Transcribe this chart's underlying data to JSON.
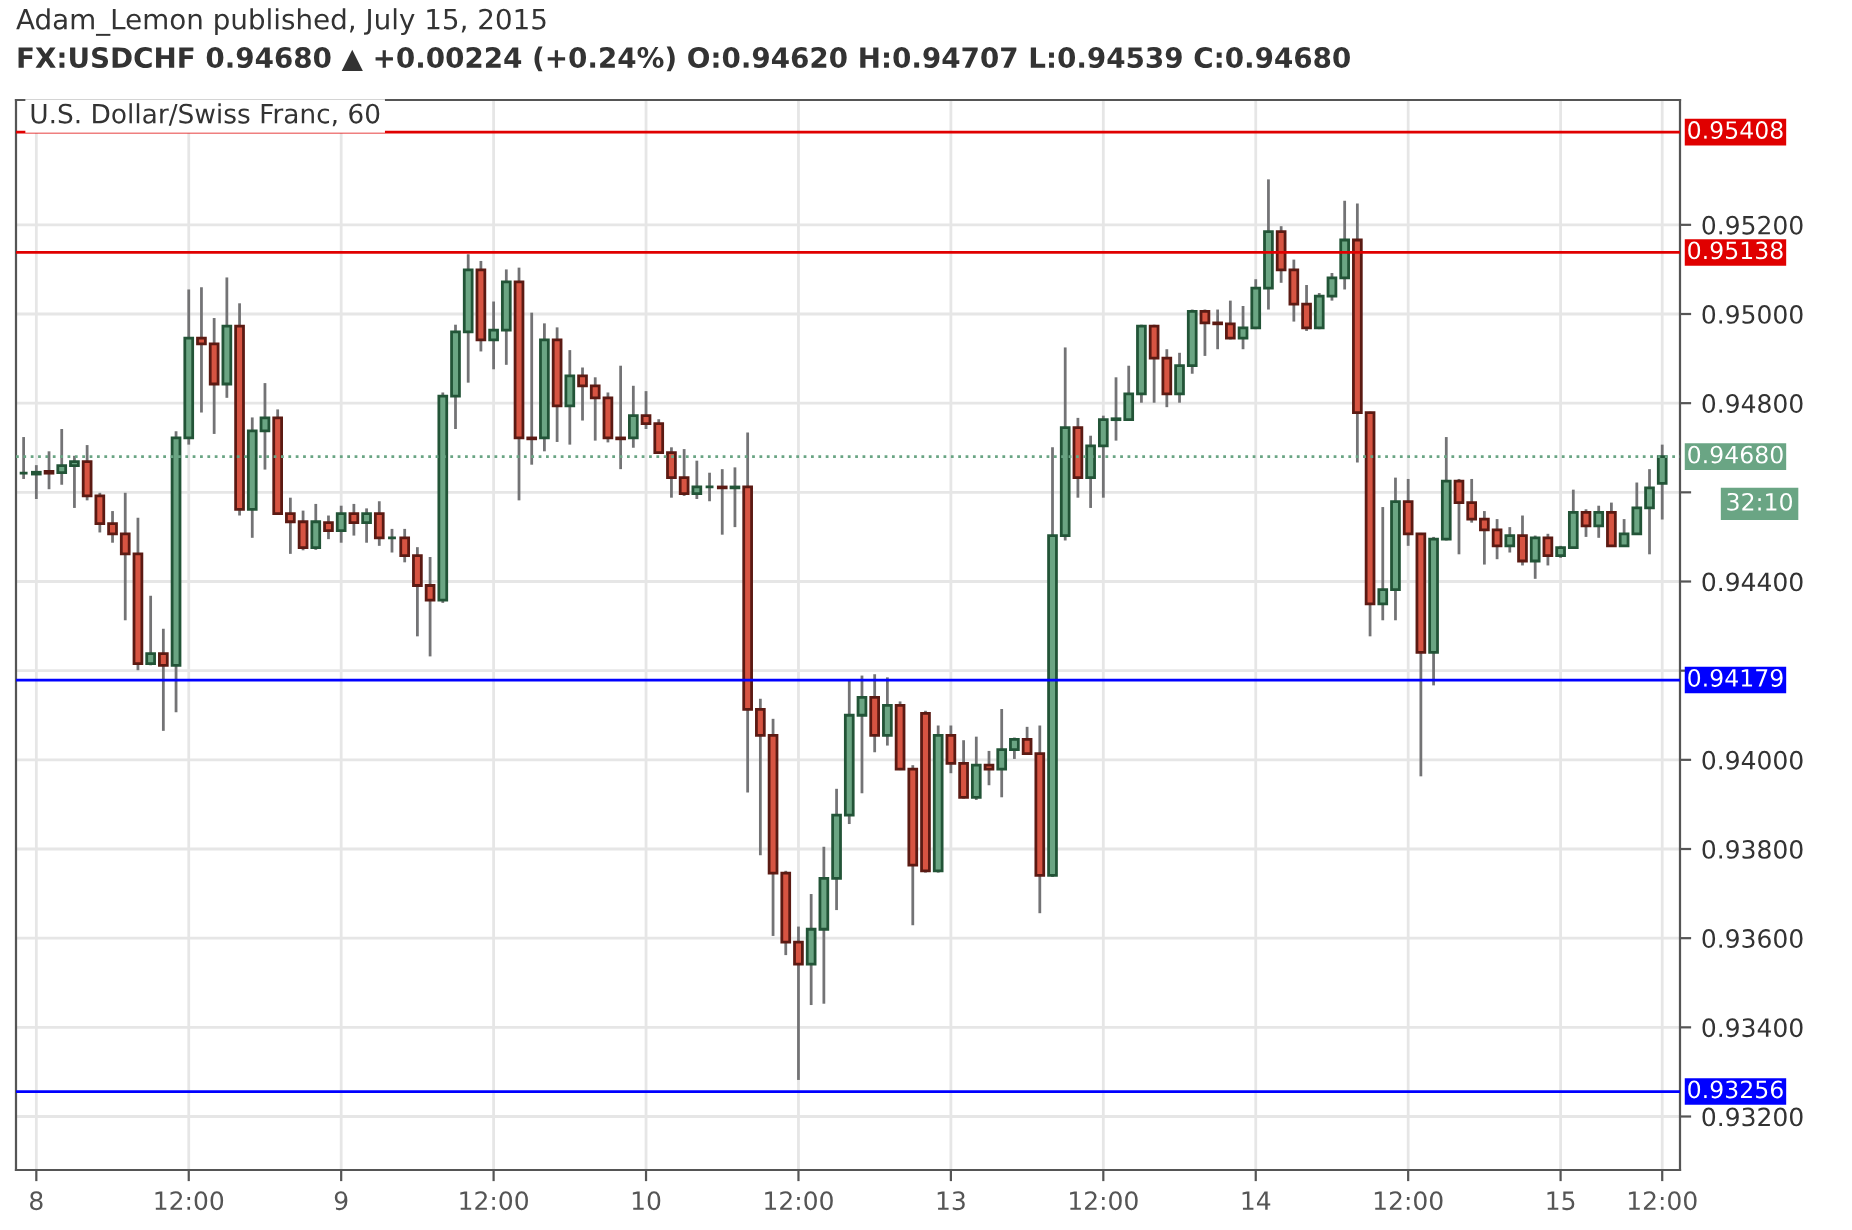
{
  "chart_data": {
    "type": "candlestick",
    "title": "U.S. Dollar/Swiss Franc, 60",
    "subtitle": "FX:USDCHF 0.94680 ▲ +0.00224 (+0.24%) O:0.94620 H:0.94707 L:0.94539 C:0.94680",
    "annotations": [
      "Adam_Lemon published, July 15, 2015",
      "32:10"
    ],
    "categories": [
      null,
      "8",
      null,
      null,
      null,
      null,
      null,
      null,
      null,
      null,
      null,
      null,
      null,
      "12:00",
      null,
      null,
      null,
      null,
      null,
      null,
      null,
      null,
      null,
      null,
      null,
      "9",
      null,
      null,
      null,
      null,
      null,
      null,
      null,
      null,
      null,
      null,
      null,
      "12:00",
      null,
      null,
      null,
      null,
      null,
      null,
      null,
      null,
      null,
      null,
      null,
      "10",
      null,
      null,
      null,
      null,
      null,
      null,
      null,
      null,
      null,
      null,
      null,
      "12:00",
      null,
      null,
      null,
      null,
      null,
      null,
      null,
      null,
      null,
      null,
      null,
      "13",
      null,
      null,
      null,
      null,
      null,
      null,
      null,
      null,
      null,
      null,
      null,
      "12:00",
      null,
      null,
      null,
      null,
      null,
      null,
      null,
      null,
      null,
      null,
      null,
      "14",
      null,
      null,
      null,
      null,
      null,
      null,
      null,
      null,
      null,
      null,
      null,
      "12:00",
      null,
      null,
      null,
      null,
      null,
      null,
      null,
      null,
      null,
      null,
      null,
      "15",
      null,
      null,
      null,
      null,
      null,
      null,
      null,
      "12:00"
    ],
    "ohlc": [
      [
        0.94643,
        0.94724,
        0.9463,
        0.94643
      ],
      [
        0.94641,
        0.94661,
        0.94585,
        0.94645
      ],
      [
        0.94647,
        0.94692,
        0.94607,
        0.94643
      ],
      [
        0.94644,
        0.94742,
        0.94617,
        0.9466
      ],
      [
        0.9466,
        0.94682,
        0.94565,
        0.94669
      ],
      [
        0.94669,
        0.94706,
        0.94582,
        0.94592
      ],
      [
        0.94592,
        0.94599,
        0.9451,
        0.9453
      ],
      [
        0.9453,
        0.94558,
        0.94487,
        0.94507
      ],
      [
        0.94507,
        0.94599,
        0.94313,
        0.94462
      ],
      [
        0.94462,
        0.94543,
        0.94201,
        0.94216
      ],
      [
        0.94216,
        0.94368,
        0.94212,
        0.94238
      ],
      [
        0.94238,
        0.94294,
        0.94065,
        0.94212
      ],
      [
        0.94212,
        0.94737,
        0.94107,
        0.94722
      ],
      [
        0.94722,
        0.95055,
        0.94707,
        0.94946
      ],
      [
        0.94946,
        0.9506,
        0.94779,
        0.94933
      ],
      [
        0.94933,
        0.94991,
        0.94731,
        0.94843
      ],
      [
        0.94843,
        0.95082,
        0.94812,
        0.94973
      ],
      [
        0.94973,
        0.95024,
        0.94548,
        0.94562
      ],
      [
        0.94562,
        0.94768,
        0.94498,
        0.94738
      ],
      [
        0.94738,
        0.94845,
        0.94651,
        0.94767
      ],
      [
        0.94767,
        0.94786,
        0.9455,
        0.94552
      ],
      [
        0.94552,
        0.94588,
        0.94462,
        0.94534
      ],
      [
        0.94534,
        0.94559,
        0.9447,
        0.94476
      ],
      [
        0.94476,
        0.94574,
        0.94471,
        0.94534
      ],
      [
        0.94532,
        0.94548,
        0.94495,
        0.94514
      ],
      [
        0.94514,
        0.9457,
        0.94487,
        0.94552
      ],
      [
        0.94552,
        0.94574,
        0.94503,
        0.94532
      ],
      [
        0.94532,
        0.94564,
        0.94487,
        0.94552
      ],
      [
        0.94552,
        0.9458,
        0.9448,
        0.94498
      ],
      [
        0.94498,
        0.94518,
        0.94465,
        0.94498
      ],
      [
        0.94498,
        0.94518,
        0.94443,
        0.94458
      ],
      [
        0.94458,
        0.94477,
        0.94277,
        0.94391
      ],
      [
        0.94391,
        0.94455,
        0.94232,
        0.94358
      ],
      [
        0.94358,
        0.94824,
        0.94352,
        0.94816
      ],
      [
        0.94816,
        0.94976,
        0.94742,
        0.9496
      ],
      [
        0.9496,
        0.95134,
        0.94846,
        0.95099
      ],
      [
        0.95099,
        0.95119,
        0.94916,
        0.94942
      ],
      [
        0.94942,
        0.95028,
        0.94876,
        0.94964
      ],
      [
        0.94964,
        0.951,
        0.94886,
        0.95072
      ],
      [
        0.95072,
        0.95104,
        0.94582,
        0.94722
      ],
      [
        0.94722,
        0.95003,
        0.94662,
        0.9472
      ],
      [
        0.94722,
        0.94979,
        0.94692,
        0.94942
      ],
      [
        0.94942,
        0.9497,
        0.94713,
        0.94794
      ],
      [
        0.94794,
        0.94919,
        0.94707,
        0.94861
      ],
      [
        0.94861,
        0.9488,
        0.94761,
        0.94839
      ],
      [
        0.94839,
        0.94858,
        0.94716,
        0.94812
      ],
      [
        0.94812,
        0.94824,
        0.94712,
        0.94722
      ],
      [
        0.94722,
        0.94884,
        0.94652,
        0.9472
      ],
      [
        0.94722,
        0.94839,
        0.947,
        0.94772
      ],
      [
        0.94772,
        0.94827,
        0.94742,
        0.94754
      ],
      [
        0.94754,
        0.94764,
        0.94689,
        0.94689
      ],
      [
        0.94689,
        0.94701,
        0.94588,
        0.94633
      ],
      [
        0.94633,
        0.94697,
        0.94592,
        0.94597
      ],
      [
        0.94597,
        0.94671,
        0.94585,
        0.94612
      ],
      [
        0.94612,
        0.94644,
        0.9458,
        0.94612
      ],
      [
        0.94612,
        0.94652,
        0.94505,
        0.9461
      ],
      [
        0.9461,
        0.94656,
        0.94522,
        0.94612
      ],
      [
        0.94612,
        0.94734,
        0.93927,
        0.94113
      ],
      [
        0.94113,
        0.94137,
        0.93786,
        0.94055
      ],
      [
        0.94055,
        0.94092,
        0.93605,
        0.93746
      ],
      [
        0.93746,
        0.93751,
        0.93562,
        0.93591
      ],
      [
        0.93591,
        0.93626,
        0.93282,
        0.93542
      ],
      [
        0.93542,
        0.93699,
        0.9345,
        0.9362
      ],
      [
        0.9362,
        0.93805,
        0.93453,
        0.93734
      ],
      [
        0.93734,
        0.93935,
        0.93663,
        0.93876
      ],
      [
        0.93876,
        0.94177,
        0.93856,
        0.941
      ],
      [
        0.941,
        0.94189,
        0.93925,
        0.9414
      ],
      [
        0.9414,
        0.94192,
        0.94017,
        0.94055
      ],
      [
        0.94055,
        0.94185,
        0.94032,
        0.94122
      ],
      [
        0.94122,
        0.94131,
        0.93977,
        0.93979
      ],
      [
        0.93979,
        0.93988,
        0.93629,
        0.93764
      ],
      [
        0.94104,
        0.9411,
        0.93747,
        0.93751
      ],
      [
        0.93751,
        0.94077,
        0.93747,
        0.94055
      ],
      [
        0.94055,
        0.94077,
        0.9397,
        0.93992
      ],
      [
        0.93992,
        0.94044,
        0.93913,
        0.93916
      ],
      [
        0.93916,
        0.94052,
        0.9391,
        0.93988
      ],
      [
        0.93988,
        0.9402,
        0.93943,
        0.93979
      ],
      [
        0.93979,
        0.94114,
        0.93916,
        0.94023
      ],
      [
        0.94023,
        0.9405,
        0.94002,
        0.94046
      ],
      [
        0.94046,
        0.94074,
        0.94012,
        0.94014
      ],
      [
        0.94014,
        0.94077,
        0.93656,
        0.93741
      ],
      [
        0.93741,
        0.94701,
        0.93737,
        0.94503
      ],
      [
        0.94503,
        0.94925,
        0.94492,
        0.94745
      ],
      [
        0.94745,
        0.94767,
        0.94588,
        0.94633
      ],
      [
        0.94633,
        0.94727,
        0.94565,
        0.94704
      ],
      [
        0.94704,
        0.94772,
        0.94588,
        0.94763
      ],
      [
        0.94763,
        0.94858,
        0.94716,
        0.94765
      ],
      [
        0.94763,
        0.94884,
        0.94763,
        0.94821
      ],
      [
        0.94821,
        0.94976,
        0.94801,
        0.94973
      ],
      [
        0.94973,
        0.94976,
        0.94801,
        0.94901
      ],
      [
        0.94901,
        0.94921,
        0.94791,
        0.94821
      ],
      [
        0.94821,
        0.94913,
        0.94801,
        0.94884
      ],
      [
        0.94884,
        0.9501,
        0.94866,
        0.95006
      ],
      [
        0.95006,
        0.9501,
        0.94906,
        0.9498
      ],
      [
        0.9498,
        0.9501,
        0.94921,
        0.94978
      ],
      [
        0.94978,
        0.9503,
        0.94943,
        0.94946
      ],
      [
        0.94946,
        0.95018,
        0.94921,
        0.94969
      ],
      [
        0.94969,
        0.95078,
        0.94966,
        0.95058
      ],
      [
        0.95058,
        0.95302,
        0.9501,
        0.95185
      ],
      [
        0.95185,
        0.95197,
        0.9507,
        0.95099
      ],
      [
        0.95099,
        0.95122,
        0.94983,
        0.95022
      ],
      [
        0.95022,
        0.95065,
        0.94962,
        0.94969
      ],
      [
        0.94969,
        0.95047,
        0.94966,
        0.9504
      ],
      [
        0.9504,
        0.95092,
        0.9503,
        0.95081
      ],
      [
        0.95081,
        0.95254,
        0.95055,
        0.95166
      ],
      [
        0.95166,
        0.95248,
        0.94667,
        0.94779
      ],
      [
        0.94779,
        0.94781,
        0.94277,
        0.9435
      ],
      [
        0.9435,
        0.94567,
        0.94313,
        0.94382
      ],
      [
        0.94382,
        0.94633,
        0.94313,
        0.94579
      ],
      [
        0.94579,
        0.9463,
        0.9448,
        0.94507
      ],
      [
        0.94507,
        0.94509,
        0.93963,
        0.94241
      ],
      [
        0.94241,
        0.945,
        0.94167,
        0.94495
      ],
      [
        0.94495,
        0.94724,
        0.94492,
        0.94625
      ],
      [
        0.94625,
        0.9463,
        0.94461,
        0.94577
      ],
      [
        0.94577,
        0.9463,
        0.94532,
        0.9454
      ],
      [
        0.9454,
        0.94558,
        0.94438,
        0.94516
      ],
      [
        0.94516,
        0.9454,
        0.9445,
        0.9448
      ],
      [
        0.9448,
        0.94522,
        0.94465,
        0.94503
      ],
      [
        0.94503,
        0.94548,
        0.94436,
        0.94446
      ],
      [
        0.94446,
        0.94503,
        0.94406,
        0.94498
      ],
      [
        0.94498,
        0.94507,
        0.94436,
        0.94458
      ],
      [
        0.94458,
        0.9448,
        0.94453,
        0.94476
      ],
      [
        0.94476,
        0.94606,
        0.94474,
        0.94555
      ],
      [
        0.94555,
        0.94562,
        0.945,
        0.94525
      ],
      [
        0.94525,
        0.9457,
        0.94498,
        0.94555
      ],
      [
        0.94555,
        0.94577,
        0.94478,
        0.9448
      ],
      [
        0.9448,
        0.9454,
        0.94478,
        0.94507
      ],
      [
        0.94507,
        0.94622,
        0.94505,
        0.94565
      ],
      [
        0.94565,
        0.94652,
        0.94461,
        0.9461
      ],
      [
        0.9462,
        0.94707,
        0.94539,
        0.9468
      ]
    ],
    "ylim": [
      0.9308,
      0.9548
    ],
    "yticks": [
      {
        "value": 0.932,
        "label": "0.93200"
      },
      {
        "value": 0.934,
        "label": "0.93400"
      },
      {
        "value": 0.936,
        "label": "0.93600"
      },
      {
        "value": 0.938,
        "label": "0.93800"
      },
      {
        "value": 0.94,
        "label": "0.94000"
      },
      {
        "value": 0.942,
        "label": null
      },
      {
        "value": 0.944,
        "label": "0.94400"
      },
      {
        "value": 0.946,
        "label": null
      },
      {
        "value": 0.948,
        "label": "0.94800"
      },
      {
        "value": 0.95,
        "label": "0.95000"
      },
      {
        "value": 0.952,
        "label": "0.95200"
      }
    ],
    "ref_lines": [
      {
        "axis": "y",
        "value": 0.95408,
        "label": "0.95408",
        "color": "#e00000",
        "line_style": "solid"
      },
      {
        "axis": "y",
        "value": 0.95138,
        "label": "0.95138",
        "color": "#e00000",
        "line_style": "solid"
      },
      {
        "axis": "y",
        "value": 0.9468,
        "label": "0.94680",
        "color": "#6aa584",
        "line_style": "dotted"
      },
      {
        "axis": "y",
        "value": 0.94179,
        "label": "0.94179",
        "color": "#0000ff",
        "line_style": "solid"
      },
      {
        "axis": "y",
        "value": 0.93256,
        "label": "0.93256",
        "color": "#0000ff",
        "line_style": "solid"
      }
    ],
    "grid": true,
    "legend": false
  }
}
